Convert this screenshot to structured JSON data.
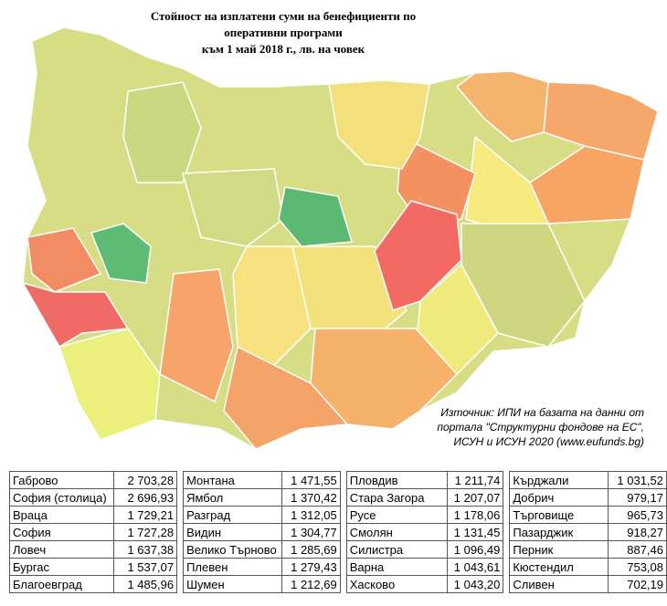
{
  "title": [
    "Стойност на изплатени суми на бенефициенти по",
    "оперативни програми",
    "към 1 май 2018 г., лв. на човек"
  ],
  "source": [
    "Източник: ИПИ на базата на данни от",
    "портала \"Структурни фондове на ЕС\",",
    "ИСУН и ИСУН 2020 (www.eufunds.bg)"
  ],
  "table": {
    "groups": [
      {
        "rows": [
          {
            "name": "Габрово",
            "value": "2 703,28"
          },
          {
            "name": "София (столица)",
            "value": "2 696,93"
          },
          {
            "name": "Враца",
            "value": "1 729,21"
          },
          {
            "name": "София",
            "value": "1 727,28"
          },
          {
            "name": "Ловеч",
            "value": "1 637,38"
          },
          {
            "name": "Бургас",
            "value": "1 537,07"
          },
          {
            "name": "Благоевград",
            "value": "1 485,96"
          }
        ]
      },
      {
        "rows": [
          {
            "name": "Монтана",
            "value": "1 471,55"
          },
          {
            "name": "Ямбол",
            "value": "1 370,42"
          },
          {
            "name": "Разград",
            "value": "1 312,05"
          },
          {
            "name": "Видин",
            "value": "1 304,77"
          },
          {
            "name": "Велико Търново",
            "value": "1 285,69"
          },
          {
            "name": "Плевен",
            "value": "1 279,43"
          },
          {
            "name": "Шумен",
            "value": "1 212,69"
          }
        ]
      },
      {
        "rows": [
          {
            "name": "Пловдив",
            "value": "1 211,74"
          },
          {
            "name": "Стара Загора",
            "value": "1 207,07"
          },
          {
            "name": "Русе",
            "value": "1 178,06"
          },
          {
            "name": "Смолян",
            "value": "1 131,45"
          },
          {
            "name": "Силистра",
            "value": "1 096,49"
          },
          {
            "name": "Варна",
            "value": "1 043,61"
          },
          {
            "name": "Хасково",
            "value": "1 043,20"
          }
        ]
      },
      {
        "rows": [
          {
            "name": "Кърджали",
            "value": "1 031,52"
          },
          {
            "name": "Добрич",
            "value": "979,17"
          },
          {
            "name": "Търговище",
            "value": "965,73"
          },
          {
            "name": "Пазарджик",
            "value": "918,27"
          },
          {
            "name": "Перник",
            "value": "887,46"
          },
          {
            "name": "Кюстендил",
            "value": "753,08"
          },
          {
            "name": "Сливен",
            "value": "702,19"
          }
        ]
      }
    ]
  }
}
